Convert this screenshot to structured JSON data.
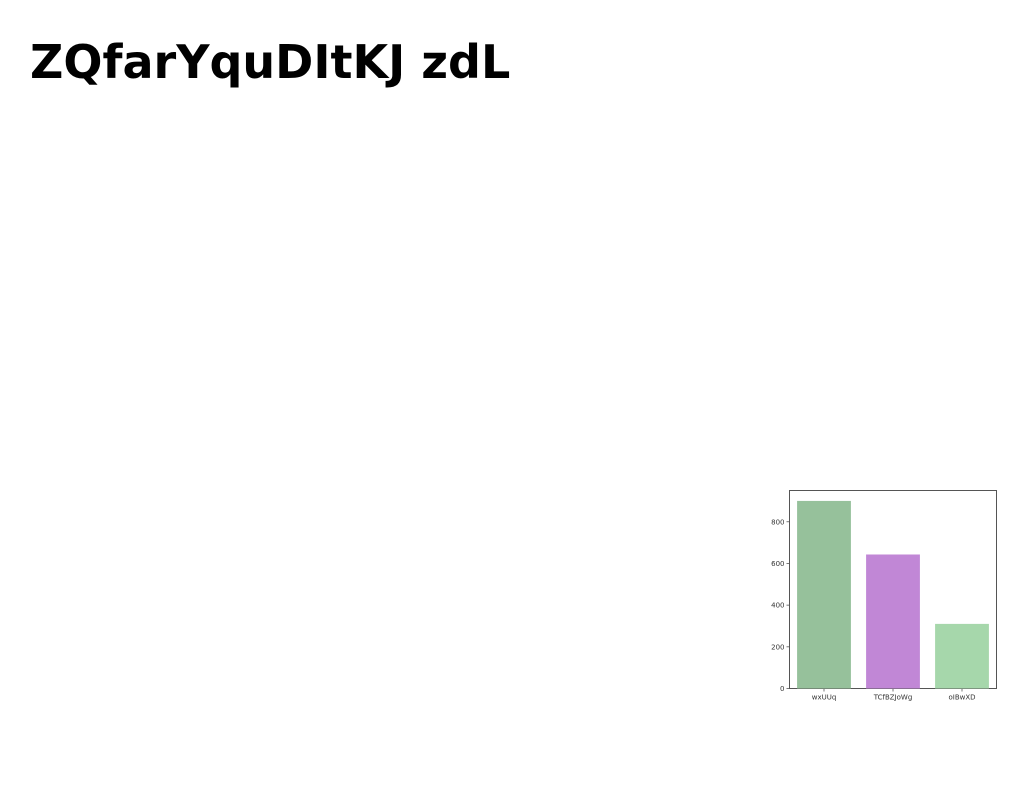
{
  "page": {
    "title": "ZQfarYquDItKJ zdL"
  },
  "chart_data": {
    "type": "bar",
    "categories": [
      "wxUUq",
      "TCfBZJoWg",
      "oIBwXD"
    ],
    "values": [
      900,
      643,
      310
    ],
    "colors": [
      "#96c19b",
      "#c187d6",
      "#a6d7ab"
    ],
    "ylim": [
      0,
      950
    ],
    "yticks": [
      0,
      200,
      400,
      600,
      800
    ],
    "title": "",
    "xlabel": "",
    "ylabel": "",
    "grid": false
  }
}
